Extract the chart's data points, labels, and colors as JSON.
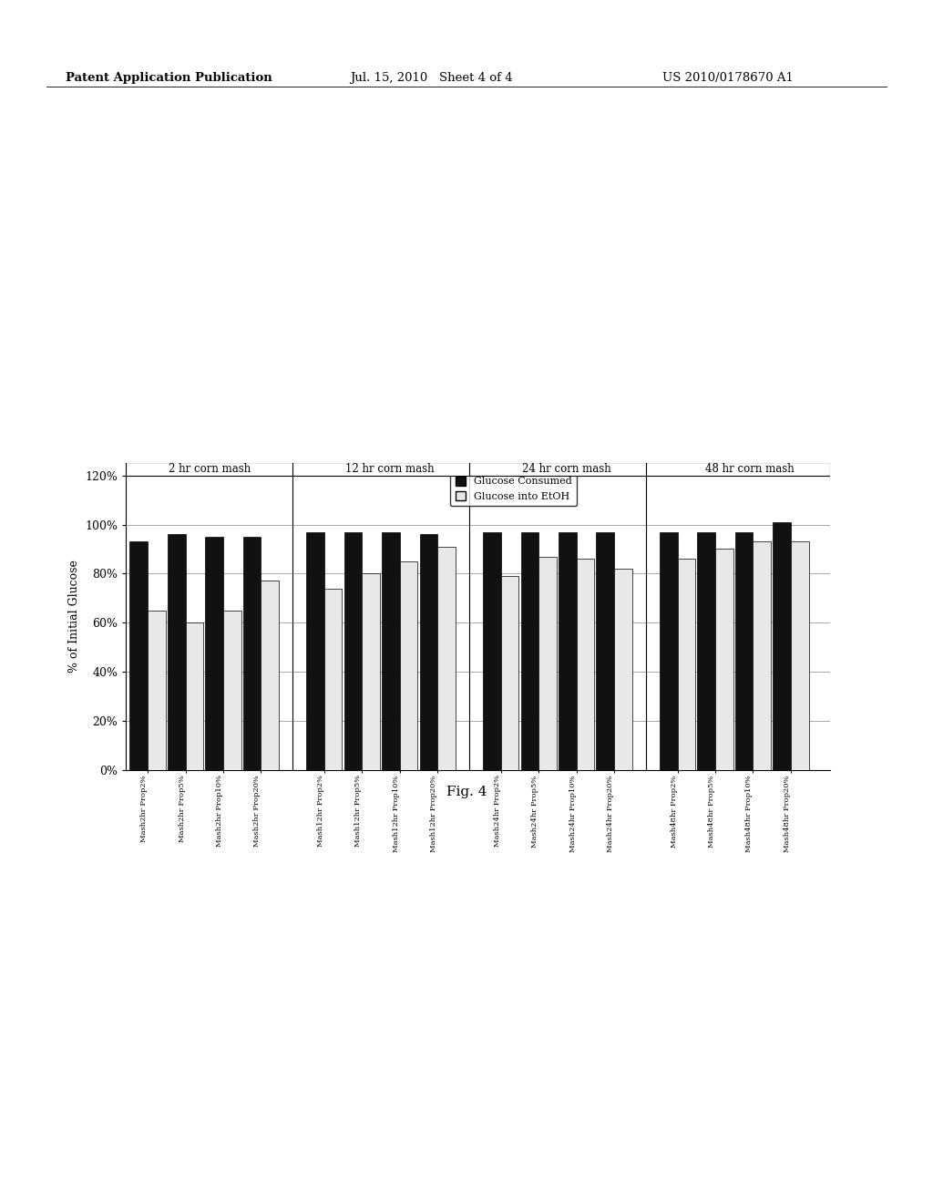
{
  "ylabel": "% of Initial Glucose",
  "ylim_max": 1.25,
  "yticks": [
    0.0,
    0.2,
    0.4,
    0.6,
    0.8,
    1.0,
    1.2
  ],
  "ytick_labels": [
    "0%",
    "20%",
    "40%",
    "60%",
    "80%",
    "100%",
    "120%"
  ],
  "groups": [
    "2 hr corn mash",
    "12 hr corn mash",
    "24 hr corn mash",
    "48 hr corn mash"
  ],
  "x_labels": [
    "Mash2hr Prop2%",
    "Mash2hr Prop5%",
    "Mash2hr Prop10%",
    "Mash2hr Prop20%",
    "Mash12hr Prop2%",
    "Mash12hr Prop5%",
    "Mash12hr Prop10%",
    "Mash12hr Prop20%",
    "Mash24hr Prop2%",
    "Mash24hr Prop5%",
    "Mash24hr Prop10%",
    "Mash24hr Prop20%",
    "Mash48hr Prop2%",
    "Mash48hr Prop5%",
    "Mash48hr Prop10%",
    "Mash48hr Prop20%"
  ],
  "glucose_consumed": [
    0.93,
    0.96,
    0.95,
    0.95,
    0.97,
    0.97,
    0.97,
    0.96,
    0.97,
    0.97,
    0.97,
    0.97,
    0.97,
    0.97,
    0.97,
    1.01
  ],
  "glucose_etoh": [
    0.65,
    0.6,
    0.65,
    0.77,
    0.74,
    0.8,
    0.85,
    0.91,
    0.79,
    0.87,
    0.86,
    0.82,
    0.86,
    0.9,
    0.93,
    0.93
  ],
  "bar_color_consumed": "#111111",
  "bar_color_etoh": "#e8e8e8",
  "bar_width": 0.35,
  "legend_labels": [
    "Glucose Consumed",
    "Glucose into EtOH"
  ],
  "fig_label": "Fig. 4",
  "header_left": "Patent Application Publication",
  "header_mid": "Jul. 15, 2010   Sheet 4 of 4",
  "header_right": "US 2010/0178670 A1"
}
